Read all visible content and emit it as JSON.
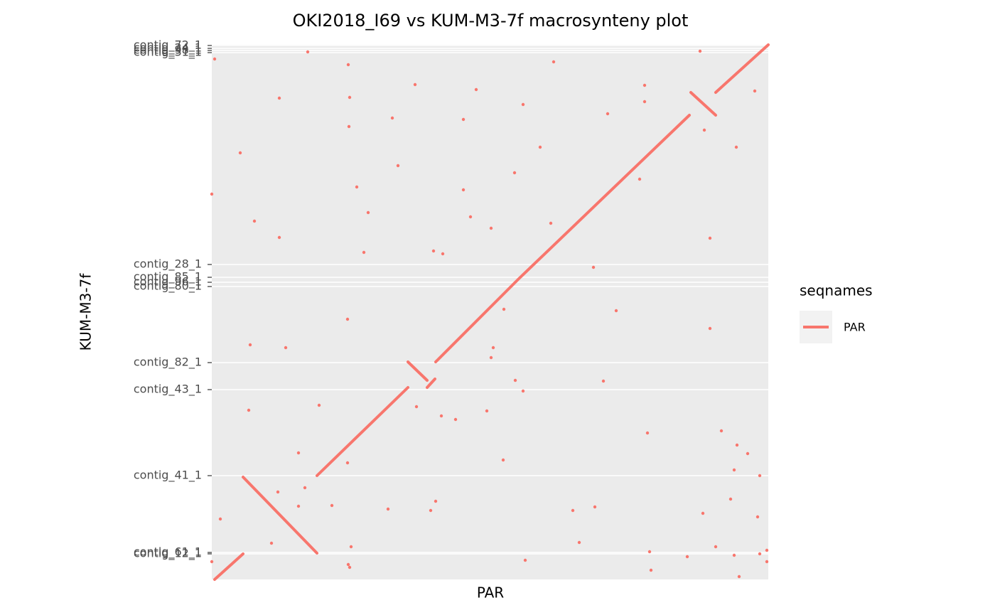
{
  "chart_data": {
    "type": "synteny",
    "title": "OKI2018_I69 vs KUM-M3-7f macrosynteny plot",
    "xlabel": "PAR",
    "ylabel": "KUM-M3-7f",
    "legend_title": "seqnames",
    "legend_position": "right",
    "grid": true,
    "xlim": [
      0,
      783
    ],
    "ylim": [
      0,
      752
    ],
    "yticks": [
      {
        "value": 751,
        "label": "contig_72_1"
      },
      {
        "value": 747,
        "label": "contig_24_1"
      },
      {
        "value": 744,
        "label": "contig_98_1"
      },
      {
        "value": 741,
        "label": "contig_31_1"
      },
      {
        "value": 443,
        "label": "contig_28_1"
      },
      {
        "value": 425,
        "label": "contig_85_1"
      },
      {
        "value": 418,
        "label": "contig_96_1"
      },
      {
        "value": 412,
        "label": "contig_80_1"
      },
      {
        "value": 305,
        "label": "contig_82_1"
      },
      {
        "value": 267,
        "label": "contig_43_1"
      },
      {
        "value": 146,
        "label": "contig_41_1"
      },
      {
        "value": 38,
        "label": "contig_61_1"
      },
      {
        "value": 36,
        "label": "contig_12_1"
      }
    ],
    "series": [
      {
        "name": "PAR",
        "color": "#F8766D",
        "x": [
          4,
          44,
          null,
          44,
          148,
          null,
          148,
          276,
          null,
          276,
          303,
          null,
          303,
          314,
          null,
          315,
          432,
          672,
          null,
          674,
          709,
          null,
          709,
          783
        ],
        "values": [
          0,
          36,
          null,
          144,
          37,
          null,
          146,
          270,
          null,
          306,
          280,
          null,
          270,
          282,
          null,
          306,
          423,
          653,
          null,
          685,
          653,
          null,
          685,
          752
        ],
        "points": {
          "x": [
            4,
            135,
            192,
            481,
            687,
            95,
            194,
            286,
            372,
            193,
            254,
            354,
            438,
            557,
            609,
            609,
            764,
            40,
            462,
            693,
            738,
            262,
            204,
            354,
            426,
            602,
            0,
            220,
            364,
            393,
            477,
            60,
            95,
            214,
            312,
            325,
            701,
            537,
            411,
            569,
            701,
            191,
            54,
            104,
            396,
            393,
            427,
            438,
            551,
            288,
            151,
            52,
            323,
            343,
            387,
            613,
            717,
            739,
            754,
            735,
            771,
            122,
            191,
            410,
            131,
            93,
            122,
            169,
            248,
            308,
            315,
            508,
            539,
            691,
            730,
            768,
            12,
            84,
            196,
            517,
            709,
            616,
            771,
            781,
            669,
            735,
            192,
            194,
            441,
            618,
            742,
            781,
            0
          ],
          "values": [
            732,
            742,
            724,
            728,
            743,
            677,
            678,
            696,
            689,
            637,
            649,
            647,
            668,
            655,
            695,
            672,
            687,
            600,
            608,
            632,
            608,
            582,
            552,
            548,
            572,
            563,
            542,
            516,
            510,
            494,
            501,
            504,
            481,
            460,
            462,
            458,
            480,
            439,
            380,
            378,
            353,
            366,
            330,
            326,
            326,
            312,
            280,
            265,
            279,
            243,
            245,
            238,
            230,
            225,
            237,
            206,
            209,
            189,
            177,
            154,
            146,
            178,
            164,
            168,
            129,
            123,
            103,
            104,
            99,
            97,
            110,
            97,
            102,
            93,
            113,
            88,
            85,
            51,
            46,
            52,
            46,
            39,
            36,
            41,
            32,
            34,
            21,
            17,
            27,
            13,
            4,
            25,
            25
          ]
        }
      }
    ]
  }
}
